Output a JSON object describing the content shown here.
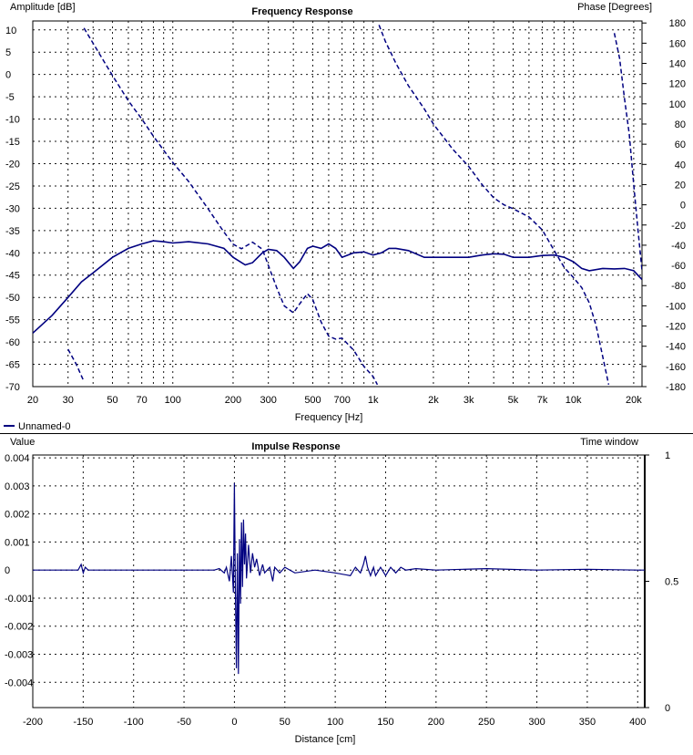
{
  "chart_data": [
    {
      "type": "line",
      "title": "Frequency Response",
      "xlabel": "Frequency [Hz]",
      "ylabel": "Amplitude [dB]",
      "y2label": "Phase [Degrees]",
      "xscale": "log",
      "xlim": [
        20,
        22000
      ],
      "ylim": [
        -70,
        12
      ],
      "y2lim": [
        -180,
        182
      ],
      "xticks": [
        20,
        30,
        50,
        70,
        100,
        200,
        300,
        500,
        700,
        1000,
        2000,
        3000,
        5000,
        7000,
        10000,
        20000
      ],
      "xtick_labels": [
        "20",
        "30",
        "50",
        "70",
        "100",
        "200",
        "300",
        "500",
        "700",
        "1k",
        "2k",
        "3k",
        "5k",
        "7k",
        "10k",
        "20k"
      ],
      "yticks": [
        10,
        5,
        0,
        -5,
        -10,
        -15,
        -20,
        -25,
        -30,
        -35,
        -40,
        -45,
        -50,
        -55,
        -60,
        -65,
        -70
      ],
      "y2ticks": [
        180,
        160,
        140,
        120,
        100,
        80,
        60,
        40,
        20,
        0,
        -20,
        -40,
        -60,
        -80,
        -100,
        -120,
        -140,
        -160,
        -180
      ],
      "grid": true,
      "legend": {
        "position": "bottom-left",
        "entries": [
          "Unnamed-0"
        ]
      },
      "series": [
        {
          "name": "Unnamed-0",
          "style": "solid",
          "axis": "left",
          "color": "#000080",
          "x": [
            20,
            25,
            30,
            35,
            40,
            50,
            60,
            70,
            80,
            90,
            100,
            120,
            150,
            180,
            200,
            230,
            250,
            280,
            300,
            330,
            360,
            400,
            430,
            470,
            500,
            550,
            600,
            650,
            700,
            800,
            900,
            1000,
            1100,
            1200,
            1300,
            1500,
            1800,
            2000,
            2500,
            3000,
            3500,
            4000,
            4500,
            5000,
            6000,
            7000,
            8000,
            9000,
            10000,
            11000,
            12000,
            14000,
            16000,
            18000,
            20000,
            22000
          ],
          "y": [
            -58,
            -54,
            -50,
            -46.5,
            -44.5,
            -41,
            -39,
            -38,
            -37.3,
            -37.5,
            -37.8,
            -37.5,
            -38,
            -39,
            -41,
            -42.7,
            -42.2,
            -40,
            -39.2,
            -39.5,
            -41,
            -43.5,
            -42,
            -39,
            -38.5,
            -39,
            -38,
            -39,
            -41,
            -40,
            -39.8,
            -40.5,
            -40,
            -39,
            -39,
            -39.5,
            -41,
            -41,
            -41,
            -41,
            -40.5,
            -40.2,
            -40.3,
            -41,
            -41,
            -40.6,
            -40.5,
            -41,
            -42,
            -43.5,
            -44,
            -43.5,
            -43.6,
            -43.5,
            -44,
            -46
          ]
        },
        {
          "name": "",
          "style": "dashed",
          "axis": "right",
          "color": "#000080",
          "segments": [
            {
              "x": [
                30,
                33,
                36
              ],
              "y": [
                -143,
                -158,
                -175
              ]
            },
            {
              "x": [
                36,
                40,
                45,
                50,
                60,
                70,
                80,
                90,
                100,
                120,
                150,
                180,
                200,
                220,
                250,
                280,
                300,
                330,
                360,
                400,
                430,
                470,
                500,
                550,
                600,
                650,
                700,
                800,
                900,
                1000,
                1050
              ],
              "y": [
                175,
                160,
                143,
                128,
                103,
                85,
                68,
                54,
                42,
                23,
                -4,
                -27,
                -39,
                -43.5,
                -37,
                -44,
                -60,
                -82,
                -100,
                -107,
                -98,
                -88,
                -94,
                -116,
                -130,
                -133,
                -132,
                -144,
                -160,
                -170,
                -178
              ]
            },
            {
              "x": [
                1070,
                1150,
                1300,
                1500,
                1800,
                2000,
                2500,
                3000,
                3500,
                4000,
                4500,
                5000,
                6000,
                7000,
                8000,
                9000,
                10000,
                11000,
                12000,
                13000,
                14000,
                15000
              ],
              "y": [
                178,
                162,
                140,
                118,
                95,
                80,
                55,
                38,
                20,
                7,
                0,
                -4,
                -12,
                -25,
                -45,
                -62,
                -72,
                -82,
                -97,
                -120,
                -150,
                -178
              ]
            },
            {
              "x": [
                16000,
                17000,
                18000,
                19000,
                20000,
                21000,
                22000
              ],
              "y": [
                170,
                145,
                105,
                70,
                20,
                -25,
                -65
              ]
            }
          ]
        }
      ]
    },
    {
      "type": "line",
      "title": "Impulse Response",
      "xlabel": "Distance [cm]",
      "ylabel": "Value",
      "y2label": "Time window",
      "xlim": [
        -200,
        407
      ],
      "ylim": [
        -0.0049,
        0.0041
      ],
      "y2lim": [
        0,
        1
      ],
      "xticks": [
        -200,
        -150,
        -100,
        -50,
        0,
        50,
        100,
        150,
        200,
        250,
        300,
        350,
        400
      ],
      "yticks": [
        0.004,
        0.003,
        0.002,
        0.001,
        0,
        -0.001,
        -0.002,
        -0.003,
        -0.004
      ],
      "ytick_labels": [
        "0.004",
        "0.003",
        "0.002",
        "0.001",
        "0",
        "-0.001",
        "-0.002",
        "-0.003",
        "-0.004"
      ],
      "y2ticks": [
        1,
        0.5,
        0
      ],
      "y2tick_labels": [
        "1",
        "0.5",
        "0"
      ],
      "grid": true,
      "series": [
        {
          "name": "",
          "style": "solid",
          "axis": "left",
          "color": "#000080",
          "x": [
            -200,
            -155,
            -152,
            -150,
            -148,
            -145,
            -20,
            -15,
            -10,
            -8,
            -5,
            -3,
            -1,
            0,
            1,
            2,
            3,
            4,
            5,
            6,
            7,
            8,
            9,
            10,
            11,
            12,
            14,
            16,
            18,
            20,
            22,
            25,
            28,
            30,
            35,
            38,
            40,
            45,
            50,
            60,
            80,
            100,
            115,
            120,
            125,
            128,
            130,
            132,
            135,
            138,
            140,
            145,
            150,
            155,
            160,
            165,
            170,
            180,
            200,
            250,
            300,
            350,
            400,
            407
          ],
          "y": [
            0,
            0,
            0.0002,
            -0.0001,
            0.0001,
            0,
            0,
            5e-05,
            -0.0001,
            0.0001,
            -0.0004,
            0.0005,
            -0.0008,
            0.0031,
            -0.0008,
            -0.0035,
            0.0006,
            -0.0037,
            0.0011,
            -0.0012,
            0.0017,
            -0.0006,
            0.0018,
            0.0002,
            0.0013,
            -0.0003,
            0.0009,
            -0.0001,
            0.0006,
            0.0001,
            0.0004,
            -0.0002,
            0.0002,
            -0.0001,
            0.0001,
            -0.0004,
            0.0001,
            -0.0001,
            0.0001,
            -0.0001,
            0,
            -0.0001,
            -0.0002,
            0.0001,
            -0.0001,
            0.0002,
            0.0005,
            0.0001,
            -0.0002,
            0.0001,
            -0.0002,
            0.0001,
            -0.0002,
            0.0001,
            -0.0001,
            0.0001,
            0,
            5e-05,
            0,
            5e-05,
            0,
            3e-05,
            0,
            0
          ]
        }
      ]
    }
  ]
}
